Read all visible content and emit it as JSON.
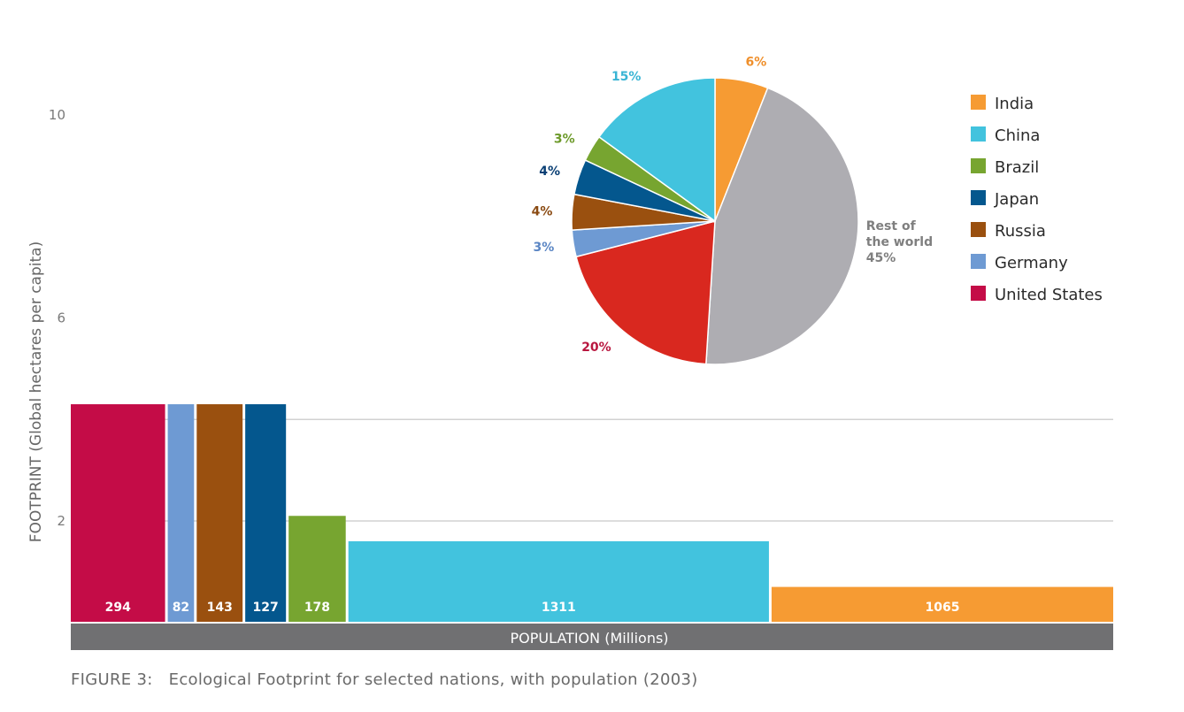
{
  "chart_data": [
    {
      "type": "bar",
      "title": "",
      "ylabel": "FOOTPRINT (Global hectares per capita)",
      "xlabel": "POPULATION (Millions)",
      "y_ticks": [
        10,
        6,
        2
      ],
      "ylim": [
        0,
        10
      ],
      "gridlines": [
        2,
        4
      ],
      "grid": "horizontal",
      "bar_width_encodes": "population",
      "categories": [
        "United States",
        "Germany",
        "Russia",
        "Japan",
        "Brazil",
        "China",
        "India"
      ],
      "populations": [
        294,
        82,
        143,
        127,
        178,
        1311,
        1065
      ],
      "population_labels": [
        "294",
        "82",
        "143",
        "127",
        "178",
        "1311",
        "1065"
      ],
      "values": [
        4.3,
        4.3,
        4.3,
        4.3,
        2.1,
        1.6,
        0.7
      ],
      "colors": [
        "#c40c47",
        "#6e9ad3",
        "#9a500f",
        "#04578e",
        "#77a530",
        "#42c3de",
        "#f69b33"
      ]
    },
    {
      "type": "pie",
      "title": "",
      "slices": [
        {
          "label": "India",
          "value": 6,
          "text": "6%",
          "color": "#f69b33",
          "label_color": "#ef8f2b"
        },
        {
          "label": "Rest of the world",
          "value": 45,
          "text": "45%",
          "label_lines": [
            "Rest of",
            "the world",
            "45%"
          ],
          "color": "#aeadb2",
          "label_color": "#7f7f7f"
        },
        {
          "label": "United States",
          "value": 20,
          "text": "20%",
          "color": "#d9281f",
          "label_color": "#b8173f"
        },
        {
          "label": "Germany",
          "value": 3,
          "text": "3%",
          "color": "#6e9ad3",
          "label_color": "#5b86c4"
        },
        {
          "label": "Russia",
          "value": 4,
          "text": "4%",
          "color": "#9a500f",
          "label_color": "#8a4a12"
        },
        {
          "label": "Japan",
          "value": 4,
          "text": "4%",
          "color": "#04578e",
          "label_color": "#0a3f74"
        },
        {
          "label": "Brazil",
          "value": 3,
          "text": "3%",
          "color": "#77a530",
          "label_color": "#6d9a2a"
        },
        {
          "label": "China",
          "value": 15,
          "text": "15%",
          "color": "#42c3de",
          "label_color": "#38b4d4"
        }
      ],
      "legend_position": "right",
      "legend": [
        {
          "label": "India",
          "color": "#f69b33"
        },
        {
          "label": "China",
          "color": "#42c3de"
        },
        {
          "label": "Brazil",
          "color": "#77a530"
        },
        {
          "label": "Japan",
          "color": "#04578e"
        },
        {
          "label": "Russia",
          "color": "#9a500f"
        },
        {
          "label": "Germany",
          "color": "#6e9ad3"
        },
        {
          "label": "United States",
          "color": "#c40c47"
        }
      ]
    }
  ],
  "caption": "FIGURE 3:   Ecological Footprint for selected nations, with population (2003)"
}
